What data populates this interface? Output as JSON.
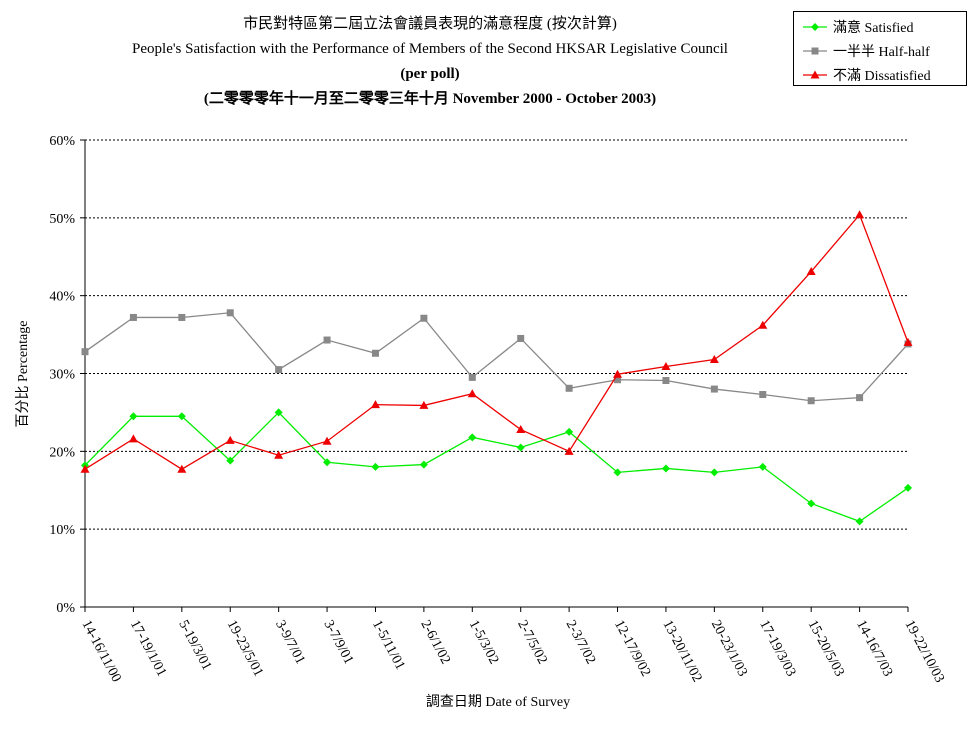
{
  "chart_data": {
    "type": "line",
    "title_zh": "市民對特區第二屆立法會議員表現的滿意程度 (按次計算)",
    "title_en": "People's Satisfaction with the Performance of Members of the Second HKSAR Legislative Council",
    "subtitle_1": "(per poll)",
    "subtitle_2": "(二零零零年十一月至二零零三年十月  November 2000 -  October 2003)",
    "xlabel": "調查日期 Date of Survey",
    "ylabel": "百分比 Percentage",
    "ylim": [
      0,
      60
    ],
    "y_ticks": [
      "0%",
      "10%",
      "20%",
      "30%",
      "40%",
      "50%",
      "60%"
    ],
    "grid": true,
    "legend_position": "top-right",
    "categories": [
      "14-16/11/00",
      "17-19/1/01",
      "5-19/3/01",
      "19-23/5/01",
      "3-9/7/01",
      "3-7/9/01",
      "1-5/11/01",
      "2-6/1/02",
      "1-5/3/02",
      "2-7/5/02",
      "2-3/7/02",
      "12-17/9/02",
      "13-20/11/02",
      "20-23/1/03",
      "17-19/3/03",
      "15-20/5/03",
      "14-16/7/03",
      "19-22/10/03"
    ],
    "series": [
      {
        "name": "滿意 Satisfied",
        "color": "#00ee00",
        "marker": "diamond",
        "values": [
          18.2,
          24.5,
          24.5,
          18.8,
          25.0,
          18.6,
          18.0,
          18.3,
          21.8,
          20.5,
          22.5,
          17.3,
          17.8,
          17.3,
          18.0,
          13.3,
          11.0,
          15.3
        ]
      },
      {
        "name": "一半半 Half-half",
        "color": "#888888",
        "marker": "square",
        "values": [
          32.8,
          37.2,
          37.2,
          37.8,
          30.5,
          34.3,
          32.6,
          37.1,
          29.5,
          34.5,
          28.1,
          29.2,
          29.1,
          28.0,
          27.3,
          26.5,
          26.9,
          33.8
        ]
      },
      {
        "name": "不滿 Dissatisfied",
        "color": "#ee0000",
        "marker": "triangle",
        "values": [
          17.7,
          21.6,
          17.7,
          21.4,
          19.5,
          21.3,
          26.0,
          25.9,
          27.4,
          22.8,
          20.0,
          29.9,
          30.9,
          31.8,
          36.2,
          43.1,
          50.4,
          34.0
        ]
      }
    ]
  }
}
